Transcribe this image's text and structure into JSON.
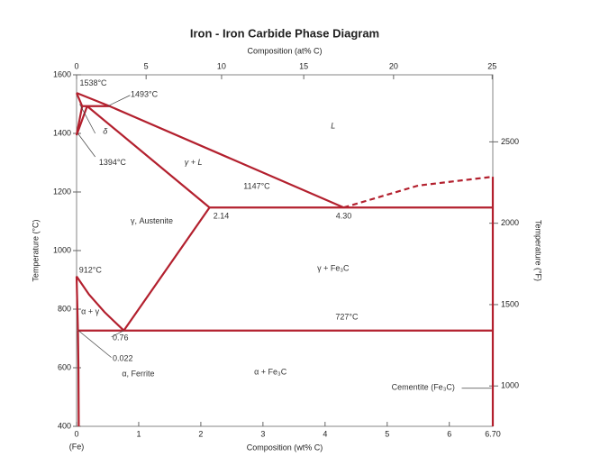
{
  "chart_data": {
    "type": "phase-diagram",
    "title": "Iron - Iron Carbide Phase Diagram",
    "x_label": "Composition (wt% C)",
    "x2_label": "Composition (at% C)",
    "y_label": "Temperature (°C)",
    "y2_label": "Temperature (°F)",
    "x_origin_note": "(Fe)",
    "color": "#b3202e",
    "xlim": [
      0,
      6.7
    ],
    "xticks": [
      0,
      1,
      2,
      3,
      4,
      5,
      6,
      {
        "value": 6.7,
        "label": "6.70"
      }
    ],
    "x2lim": [
      0,
      25
    ],
    "x2ticks": [
      0,
      5,
      10,
      15,
      20,
      25
    ],
    "ylim": [
      400,
      1600
    ],
    "yticks": [
      400,
      600,
      800,
      1000,
      1200,
      1400,
      1600
    ],
    "y2lim": [
      752,
      2912
    ],
    "y2ticks": [
      1000,
      1500,
      2000,
      2500
    ],
    "series": [
      {
        "style": "solid",
        "x": [
          0,
          0.53,
          4.3
        ],
        "values": [
          1538,
          1493,
          1147
        ]
      },
      {
        "style": "dashed",
        "x": [
          4.3,
          5.5,
          6.7
        ],
        "values": [
          1147,
          1222,
          1252
        ]
      },
      {
        "style": "solid",
        "x": [
          0,
          0.09
        ],
        "values": [
          1538,
          1493
        ]
      },
      {
        "style": "solid",
        "x": [
          0.09,
          0
        ],
        "values": [
          1493,
          1394
        ]
      },
      {
        "style": "solid",
        "x": [
          0.17,
          0
        ],
        "values": [
          1493,
          1394
        ]
      },
      {
        "style": "solid",
        "x": [
          0.09,
          0.53
        ],
        "values": [
          1493,
          1493
        ]
      },
      {
        "style": "solid",
        "x": [
          0.17,
          2.14
        ],
        "values": [
          1493,
          1147
        ]
      },
      {
        "style": "solid",
        "x": [
          2.14,
          6.7
        ],
        "values": [
          1147,
          1147
        ]
      },
      {
        "style": "solid",
        "x": [
          2.14,
          0.76
        ],
        "values": [
          1147,
          727
        ]
      },
      {
        "style": "solid",
        "x": [
          0,
          0.2,
          0.45,
          0.76
        ],
        "values": [
          912,
          850,
          790,
          727
        ]
      },
      {
        "style": "solid",
        "x": [
          0.022,
          6.7
        ],
        "values": [
          727,
          727
        ]
      },
      {
        "style": "solid",
        "x": [
          0,
          0.022
        ],
        "values": [
          912,
          727
        ]
      },
      {
        "style": "solid",
        "x": [
          0.022,
          0.03,
          0.035
        ],
        "values": [
          727,
          600,
          400
        ]
      },
      {
        "style": "solid",
        "x": [
          6.7,
          6.7
        ],
        "values": [
          400,
          1252
        ]
      }
    ],
    "annotations": [
      "1538°C",
      "1493°C",
      "1394°C",
      "912°C",
      "1147°C",
      "727°C",
      "0.76",
      "0.022",
      "2.14",
      "4.30",
      "L",
      "γ + L",
      "δ",
      "γ, Austenite",
      "γ + Fe₃C",
      "α + Fe₃C",
      "α, Ferrite",
      "α + γ",
      "Cementite (Fe₃C)"
    ]
  }
}
